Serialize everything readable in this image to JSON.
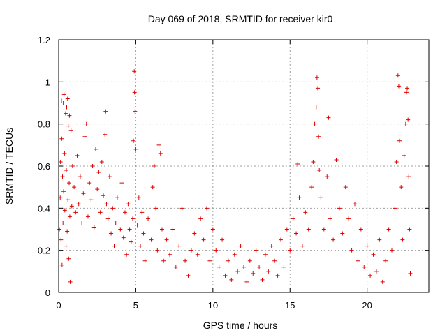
{
  "chart_data": {
    "type": "scatter",
    "title": "Day 069 of 2018, SRMTID for receiver kir0",
    "xlabel": "GPS time / hours",
    "ylabel": "SRMTID / TECUs",
    "xlim": [
      0,
      24
    ],
    "ylim": [
      0,
      1.2
    ],
    "x_ticks": [
      0,
      5,
      10,
      15,
      20
    ],
    "y_ticks": [
      0,
      0.2,
      0.4,
      0.6,
      0.8,
      1,
      1.2
    ],
    "x_tick_labels": [
      "0",
      "5",
      "10",
      "15",
      "20"
    ],
    "y_tick_labels": [
      "0",
      "0.2",
      "0.4",
      "0.6",
      "0.8",
      "1",
      "1.2"
    ],
    "grid": true,
    "marker": "plus",
    "series": [
      {
        "name": "SRMTID",
        "color": "#dd0000",
        "points": [
          [
            0.05,
            0.3
          ],
          [
            0.1,
            0.45
          ],
          [
            0.12,
            0.62
          ],
          [
            0.15,
            0.25
          ],
          [
            0.18,
            0.91
          ],
          [
            0.2,
            0.73
          ],
          [
            0.22,
            0.13
          ],
          [
            0.25,
            0.55
          ],
          [
            0.28,
            0.33
          ],
          [
            0.3,
            0.9
          ],
          [
            0.32,
            0.48
          ],
          [
            0.35,
            0.94
          ],
          [
            0.38,
            0.66
          ],
          [
            0.4,
            0.39
          ],
          [
            0.45,
            0.85
          ],
          [
            0.48,
            0.22
          ],
          [
            0.5,
            0.58
          ],
          [
            0.52,
            0.88
          ],
          [
            0.55,
            0.29
          ],
          [
            0.58,
            0.92
          ],
          [
            0.6,
            0.44
          ],
          [
            0.62,
            0.79
          ],
          [
            0.65,
            0.16
          ],
          [
            0.68,
            0.52
          ],
          [
            0.7,
            0.84
          ],
          [
            0.72,
            0.36
          ],
          [
            0.75,
            0.05
          ],
          [
            0.8,
            0.77
          ],
          [
            0.85,
            0.41
          ],
          [
            0.9,
            0.6
          ],
          [
            1.0,
            0.5
          ],
          [
            1.1,
            0.38
          ],
          [
            1.2,
            0.65
          ],
          [
            1.3,
            0.42
          ],
          [
            1.4,
            0.55
          ],
          [
            1.5,
            0.33
          ],
          [
            1.6,
            0.47
          ],
          [
            1.7,
            0.74
          ],
          [
            1.8,
            0.8
          ],
          [
            1.9,
            0.36
          ],
          [
            2.0,
            0.52
          ],
          [
            2.1,
            0.44
          ],
          [
            2.2,
            0.6
          ],
          [
            2.3,
            0.31
          ],
          [
            2.4,
            0.68
          ],
          [
            2.5,
            0.49
          ],
          [
            2.6,
            0.57
          ],
          [
            2.7,
            0.38
          ],
          [
            2.8,
            0.62
          ],
          [
            2.9,
            0.46
          ],
          [
            3.0,
            0.75
          ],
          [
            3.05,
            0.86
          ],
          [
            3.1,
            0.42
          ],
          [
            3.2,
            0.35
          ],
          [
            3.3,
            0.55
          ],
          [
            3.4,
            0.28
          ],
          [
            3.5,
            0.4
          ],
          [
            3.6,
            0.22
          ],
          [
            3.7,
            0.33
          ],
          [
            3.8,
            0.45
          ],
          [
            4.0,
            0.3
          ],
          [
            4.1,
            0.52
          ],
          [
            4.2,
            0.26
          ],
          [
            4.3,
            0.38
          ],
          [
            4.4,
            0.18
          ],
          [
            4.5,
            0.42
          ],
          [
            4.6,
            0.3
          ],
          [
            4.7,
            0.24
          ],
          [
            4.8,
            0.35
          ],
          [
            4.85,
            0.72
          ],
          [
            4.9,
            1.05
          ],
          [
            4.92,
            0.95
          ],
          [
            4.95,
            0.86
          ],
          [
            5.0,
            0.68
          ],
          [
            5.1,
            0.32
          ],
          [
            5.2,
            0.45
          ],
          [
            5.3,
            0.22
          ],
          [
            5.4,
            0.38
          ],
          [
            5.5,
            0.28
          ],
          [
            5.6,
            0.15
          ],
          [
            5.8,
            0.35
          ],
          [
            6.0,
            0.25
          ],
          [
            6.1,
            0.5
          ],
          [
            6.2,
            0.6
          ],
          [
            6.3,
            0.4
          ],
          [
            6.4,
            0.2
          ],
          [
            6.5,
            0.7
          ],
          [
            6.6,
            0.66
          ],
          [
            6.7,
            0.3
          ],
          [
            6.8,
            0.15
          ],
          [
            7.0,
            0.25
          ],
          [
            7.2,
            0.18
          ],
          [
            7.4,
            0.3
          ],
          [
            7.6,
            0.12
          ],
          [
            7.8,
            0.22
          ],
          [
            8.0,
            0.4
          ],
          [
            8.2,
            0.15
          ],
          [
            8.4,
            0.08
          ],
          [
            8.6,
            0.2
          ],
          [
            8.8,
            0.28
          ],
          [
            9.0,
            0.18
          ],
          [
            9.2,
            0.35
          ],
          [
            9.4,
            0.25
          ],
          [
            9.6,
            0.4
          ],
          [
            9.8,
            0.15
          ],
          [
            10.0,
            0.3
          ],
          [
            10.2,
            0.2
          ],
          [
            10.4,
            0.12
          ],
          [
            10.6,
            0.25
          ],
          [
            10.8,
            0.08
          ],
          [
            11.0,
            0.15
          ],
          [
            11.2,
            0.06
          ],
          [
            11.4,
            0.18
          ],
          [
            11.6,
            0.1
          ],
          [
            11.8,
            0.22
          ],
          [
            12.0,
            0.12
          ],
          [
            12.2,
            0.05
          ],
          [
            12.4,
            0.15
          ],
          [
            12.6,
            0.09
          ],
          [
            12.8,
            0.2
          ],
          [
            13.0,
            0.12
          ],
          [
            13.2,
            0.06
          ],
          [
            13.4,
            0.18
          ],
          [
            13.6,
            0.1
          ],
          [
            13.8,
            0.22
          ],
          [
            14.0,
            0.15
          ],
          [
            14.2,
            0.08
          ],
          [
            14.4,
            0.25
          ],
          [
            14.6,
            0.12
          ],
          [
            14.8,
            0.3
          ],
          [
            15.0,
            0.2
          ],
          [
            15.2,
            0.35
          ],
          [
            15.4,
            0.28
          ],
          [
            15.5,
            0.61
          ],
          [
            15.6,
            0.45
          ],
          [
            15.8,
            0.22
          ],
          [
            16.0,
            0.38
          ],
          [
            16.2,
            0.3
          ],
          [
            16.4,
            0.5
          ],
          [
            16.5,
            0.62
          ],
          [
            16.6,
            0.8
          ],
          [
            16.7,
            0.88
          ],
          [
            16.75,
            1.02
          ],
          [
            16.8,
            0.97
          ],
          [
            16.85,
            0.74
          ],
          [
            16.9,
            0.58
          ],
          [
            17.0,
            0.45
          ],
          [
            17.2,
            0.3
          ],
          [
            17.4,
            0.55
          ],
          [
            17.5,
            0.83
          ],
          [
            17.6,
            0.35
          ],
          [
            17.8,
            0.25
          ],
          [
            18.0,
            0.63
          ],
          [
            18.2,
            0.4
          ],
          [
            18.4,
            0.28
          ],
          [
            18.6,
            0.5
          ],
          [
            18.8,
            0.35
          ],
          [
            19.0,
            0.2
          ],
          [
            19.2,
            0.42
          ],
          [
            19.4,
            0.15
          ],
          [
            19.6,
            0.3
          ],
          [
            19.8,
            0.12
          ],
          [
            20.0,
            0.22
          ],
          [
            20.2,
            0.08
          ],
          [
            20.4,
            0.18
          ],
          [
            20.6,
            0.1
          ],
          [
            20.8,
            0.25
          ],
          [
            21.0,
            0.05
          ],
          [
            21.2,
            0.15
          ],
          [
            21.4,
            0.3
          ],
          [
            21.6,
            0.2
          ],
          [
            21.8,
            0.4
          ],
          [
            21.9,
            0.62
          ],
          [
            22.0,
            1.03
          ],
          [
            22.05,
            0.98
          ],
          [
            22.1,
            0.72
          ],
          [
            22.2,
            0.5
          ],
          [
            22.3,
            0.25
          ],
          [
            22.4,
            0.65
          ],
          [
            22.5,
            0.8
          ],
          [
            22.55,
            0.95
          ],
          [
            22.6,
            0.97
          ],
          [
            22.65,
            0.82
          ],
          [
            22.7,
            0.55
          ],
          [
            22.75,
            0.3
          ],
          [
            22.8,
            0.09
          ]
        ]
      }
    ]
  }
}
